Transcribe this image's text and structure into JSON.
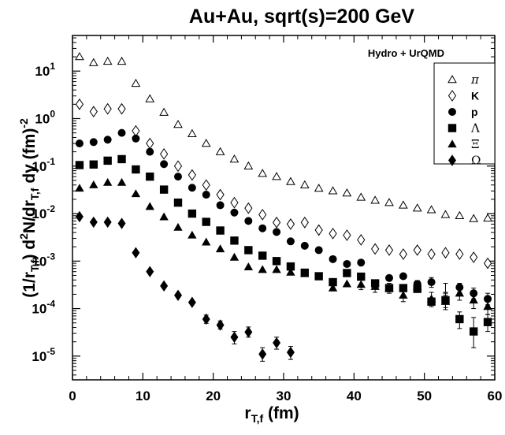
{
  "chart_data": {
    "type": "scatter",
    "title": "Au+Au, sqrt(s)=200 GeV",
    "annotation": "Hydro + UrQMD",
    "xlabel": {
      "main": "r",
      "sub": "T,f",
      "unit": " (fm)"
    },
    "ylabel": {
      "p1": "(1/r",
      "p1sub": "T,f",
      "p2": ") d",
      "p2sup": "2",
      "p3": "N/dr",
      "p3sub": "T,f",
      "p4": " dy (fm)",
      "p4sup": "-2"
    },
    "xlim": [
      0,
      60
    ],
    "ylim_log10": [
      -5.5,
      1.75
    ],
    "log_y": true,
    "x_ticks": [
      0,
      10,
      20,
      30,
      40,
      50,
      60
    ],
    "x_tick_labels": [
      "0",
      "10",
      "20",
      "30",
      "40",
      "50",
      "60"
    ],
    "y_ticks_log10": [
      -5,
      -4,
      -3,
      -2,
      -1,
      0,
      1
    ],
    "y_tick_labels": [
      {
        "base": "10",
        "exp": "-5"
      },
      {
        "base": "10",
        "exp": "-4"
      },
      {
        "base": "10",
        "exp": "-3"
      },
      {
        "base": "10",
        "exp": "-2"
      },
      {
        "base": "10",
        "exp": "-1"
      },
      {
        "base": "10",
        "exp": "0"
      },
      {
        "base": "10",
        "exp": "1"
      }
    ],
    "legend_position": "top-right",
    "series": [
      {
        "name": "π",
        "marker": "triangle-open",
        "x": [
          1,
          3,
          5,
          7,
          9,
          11,
          13,
          15,
          17,
          19,
          21,
          23,
          25,
          27,
          29,
          31,
          33,
          35,
          37,
          39,
          41,
          43,
          45,
          47,
          49,
          51,
          53,
          55,
          57,
          59
        ],
        "y": [
          20,
          15,
          16,
          16,
          5.5,
          2.6,
          1.35,
          0.75,
          0.48,
          0.3,
          0.2,
          0.14,
          0.1,
          0.07,
          0.06,
          0.047,
          0.04,
          0.034,
          0.03,
          0.027,
          0.022,
          0.019,
          0.017,
          0.015,
          0.013,
          0.012,
          0.0095,
          0.009,
          0.0078,
          0.008
        ]
      },
      {
        "name": "K",
        "marker": "diamond-open",
        "x": [
          1,
          3,
          5,
          7,
          9,
          11,
          13,
          15,
          17,
          19,
          21,
          23,
          25,
          27,
          29,
          31,
          33,
          35,
          37,
          39,
          41,
          43,
          45,
          47,
          49,
          51,
          53,
          55,
          57,
          59
        ],
        "y": [
          2.0,
          1.4,
          1.6,
          1.6,
          0.55,
          0.3,
          0.18,
          0.1,
          0.065,
          0.04,
          0.025,
          0.017,
          0.013,
          0.0095,
          0.0065,
          0.006,
          0.0065,
          0.0045,
          0.0038,
          0.0035,
          0.0028,
          0.0018,
          0.0017,
          0.0014,
          0.0017,
          0.0014,
          0.0015,
          0.0014,
          0.0012,
          0.0009
        ]
      },
      {
        "name": "p",
        "marker": "circle-filled",
        "x": [
          1,
          3,
          5,
          7,
          9,
          11,
          13,
          15,
          17,
          19,
          21,
          23,
          25,
          27,
          29,
          31,
          33,
          35,
          37,
          39,
          41,
          43,
          45,
          47,
          49,
          51,
          53,
          55,
          57,
          59
        ],
        "y": [
          0.3,
          0.32,
          0.36,
          0.5,
          0.38,
          0.2,
          0.11,
          0.06,
          0.035,
          0.025,
          0.015,
          0.0105,
          0.007,
          0.0049,
          0.0041,
          0.0026,
          0.0021,
          0.0017,
          0.0011,
          0.00087,
          0.00093,
          null,
          0.00044,
          0.00048,
          0.00033,
          0.00036,
          null,
          0.00028,
          0.00021,
          0.00016
        ]
      },
      {
        "name": "Λ",
        "marker": "square-filled",
        "x": [
          1,
          3,
          5,
          7,
          9,
          11,
          13,
          15,
          17,
          19,
          21,
          23,
          25,
          27,
          29,
          31,
          33,
          35,
          37,
          39,
          41,
          43,
          45,
          47,
          49,
          51,
          53,
          55,
          57,
          59
        ],
        "y": [
          0.105,
          0.108,
          0.13,
          0.14,
          0.085,
          0.06,
          0.032,
          0.017,
          0.01,
          0.0067,
          0.0044,
          0.0027,
          0.0017,
          0.0013,
          0.001,
          0.00077,
          0.00057,
          0.00048,
          0.00036,
          0.00056,
          0.00047,
          0.00034,
          0.00027,
          0.00027,
          0.00026,
          0.00014,
          0.00015,
          6e-05,
          3.3e-05,
          5.2e-05
        ]
      },
      {
        "name": "Ξ",
        "marker": "triangle-filled",
        "x": [
          1,
          3,
          5,
          7,
          9,
          11,
          13,
          15,
          17,
          19,
          21,
          23,
          25,
          27,
          29,
          31,
          33,
          35,
          37,
          39,
          41,
          43,
          45,
          47,
          49,
          51,
          53,
          55,
          57,
          59
        ],
        "y": [
          0.034,
          0.04,
          0.045,
          0.045,
          0.026,
          0.014,
          0.0085,
          0.0051,
          0.0035,
          0.0025,
          0.0018,
          0.0012,
          0.00075,
          0.00066,
          0.00066,
          0.00058,
          0.00054,
          null,
          0.00027,
          0.00033,
          0.00032,
          0.00029,
          0.00027,
          0.00019,
          0.00029,
          0.00016,
          0.00014,
          0.00021,
          0.00015,
          0.00011
        ]
      },
      {
        "name": "Ω",
        "marker": "diamond-filled",
        "x": [
          1,
          3,
          5,
          7,
          9,
          11,
          13,
          15,
          17,
          19,
          21,
          23,
          25,
          27,
          29,
          31
        ],
        "y": [
          0.0086,
          0.0066,
          0.0066,
          0.0062,
          0.0015,
          0.0006,
          0.0003,
          0.00019,
          0.000135,
          6e-05,
          4.5e-05,
          2.5e-05,
          3.2e-05,
          1.1e-05,
          1.9e-05,
          1.2e-05
        ]
      }
    ],
    "error_bars": [
      {
        "series": "Ω",
        "x": [
          19,
          21,
          23,
          25,
          27,
          29,
          31
        ],
        "lo": [
          4.9e-05,
          3.7e-05,
          1.8e-05,
          2.5e-05,
          7.8e-06,
          1.4e-05,
          8.5e-06
        ],
        "hi": [
          7.3e-05,
          5.5e-05,
          3.3e-05,
          4.1e-05,
          1.5e-05,
          2.5e-05,
          1.6e-05
        ]
      },
      {
        "series": "Λ",
        "x": [
          53,
          55,
          57,
          59
        ],
        "lo": [
          0.000105,
          3.8e-05,
          1.5e-05,
          3.3e-05
        ],
        "hi": [
          0.00021,
          8.5e-05,
          6.5e-05,
          7.5e-05
        ]
      },
      {
        "series": "Ξ",
        "x": [
          41,
          43,
          45,
          47,
          49,
          51,
          53,
          55,
          57,
          59
        ],
        "lo": [
          0.00025,
          0.00022,
          0.00021,
          0.00014,
          0.00022,
          0.00011,
          9.5e-05,
          0.00015,
          0.0001,
          7.5e-05
        ],
        "hi": [
          0.0004,
          0.00037,
          0.00034,
          0.00025,
          0.00037,
          0.00022,
          0.00019,
          0.00028,
          0.00021,
          0.00015
        ]
      },
      {
        "series": "p",
        "x": [
          49,
          51,
          53,
          55,
          57,
          59
        ],
        "lo": [
          0.00028,
          0.00028,
          0.00022,
          0.00022,
          0.00016,
          0.00012
        ],
        "hi": [
          0.00039,
          0.00045,
          0.00034,
          0.00034,
          0.00027,
          0.00021
        ]
      }
    ]
  }
}
